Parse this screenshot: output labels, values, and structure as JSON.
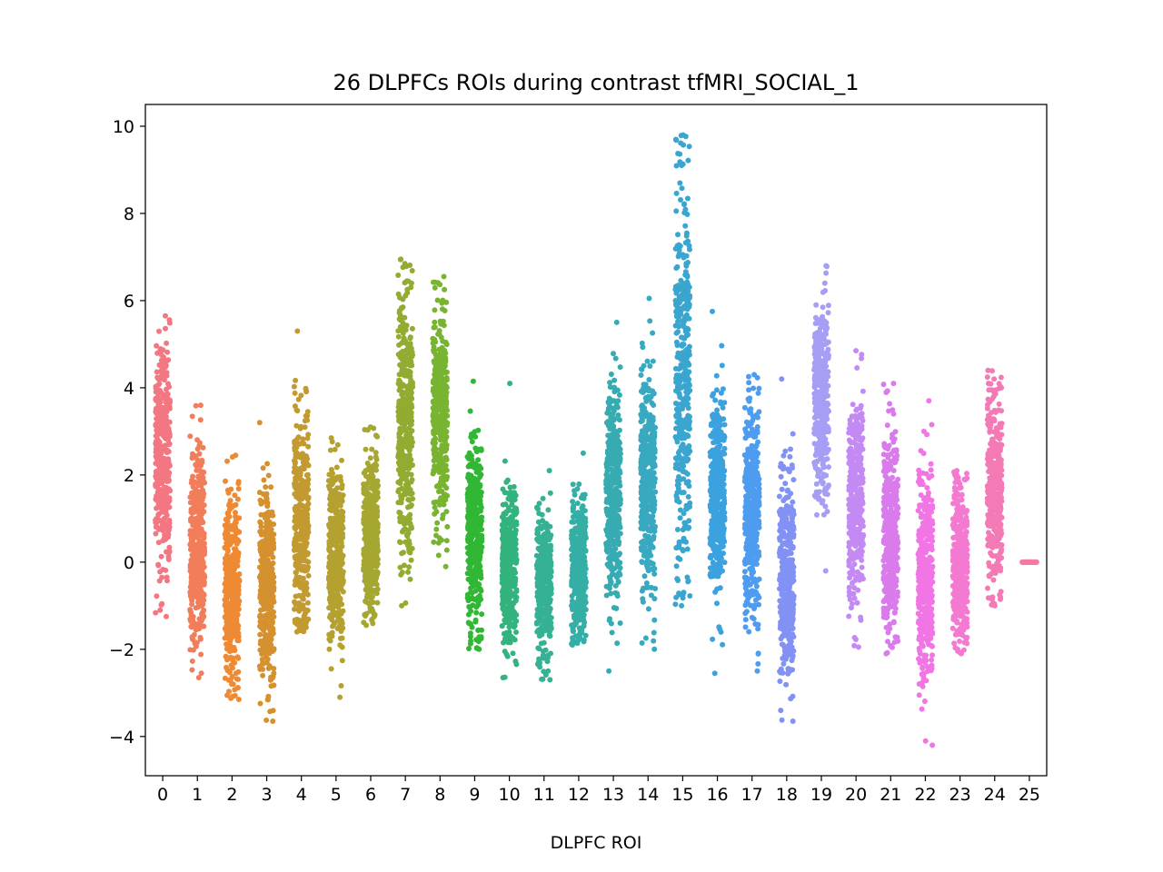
{
  "chart_data": {
    "type": "scatter",
    "subtype": "strip",
    "title": "26 DLPFCs ROIs during contrast tfMRI_SOCIAL_1",
    "xlabel": "DLPFC ROI",
    "ylabel": "",
    "categories": [
      "0",
      "1",
      "2",
      "3",
      "4",
      "5",
      "6",
      "7",
      "8",
      "9",
      "10",
      "11",
      "12",
      "13",
      "14",
      "15",
      "16",
      "17",
      "18",
      "19",
      "20",
      "21",
      "22",
      "23",
      "24",
      "25"
    ],
    "ylim": [
      -4.9,
      10.5
    ],
    "yticks": [
      -4,
      -2,
      0,
      2,
      4,
      6,
      8,
      10
    ],
    "yticklabels": [
      "−4",
      "−2",
      "0",
      "2",
      "4",
      "6",
      "8",
      "10"
    ],
    "grid": false,
    "legend": "none",
    "series_summary": [
      {
        "roi": "0",
        "color": "#f37782",
        "median": 2.5,
        "spread": 1.4,
        "min": -1.25,
        "max": 5.65
      },
      {
        "roi": "1",
        "color": "#f17d5a",
        "median": 0.3,
        "spread": 1.1,
        "min": -2.65,
        "max": 3.6
      },
      {
        "roi": "2",
        "color": "#ef8a34",
        "median": -0.6,
        "spread": 1.0,
        "min": -3.15,
        "max": 2.45
      },
      {
        "roi": "3",
        "color": "#d5912f",
        "median": -0.5,
        "spread": 1.2,
        "min": -3.65,
        "max": 3.2
      },
      {
        "roi": "4",
        "color": "#c29a30",
        "median": 0.9,
        "spread": 1.3,
        "min": -1.6,
        "max": 5.3
      },
      {
        "roi": "5",
        "color": "#b4a130",
        "median": 0.2,
        "spread": 1.0,
        "min": -3.1,
        "max": 2.85
      },
      {
        "roi": "6",
        "color": "#a5a731",
        "median": 0.6,
        "spread": 0.9,
        "min": -1.45,
        "max": 3.1
      },
      {
        "roi": "7",
        "color": "#92ab31",
        "median": 3.2,
        "spread": 1.6,
        "min": -1.0,
        "max": 6.95
      },
      {
        "roi": "8",
        "color": "#78b431",
        "median": 3.5,
        "spread": 1.2,
        "min": -0.1,
        "max": 6.55
      },
      {
        "roi": "9",
        "color": "#31b735",
        "median": 0.6,
        "spread": 1.0,
        "min": -2.0,
        "max": 4.15
      },
      {
        "roi": "10",
        "color": "#33b37e",
        "median": -0.2,
        "spread": 0.9,
        "min": -2.65,
        "max": 4.1
      },
      {
        "roi": "11",
        "color": "#35b194",
        "median": -0.5,
        "spread": 0.8,
        "min": -2.7,
        "max": 2.1
      },
      {
        "roi": "12",
        "color": "#35afa6",
        "median": -0.2,
        "spread": 0.8,
        "min": -1.9,
        "max": 2.5
      },
      {
        "roi": "13",
        "color": "#37abb2",
        "median": 1.6,
        "spread": 1.2,
        "min": -2.5,
        "max": 5.5
      },
      {
        "roi": "14",
        "color": "#38a9c0",
        "median": 2.0,
        "spread": 1.3,
        "min": -2.0,
        "max": 6.05
      },
      {
        "roi": "15",
        "color": "#3aa6cf",
        "median": 4.3,
        "spread": 2.3,
        "min": -1.0,
        "max": 9.8
      },
      {
        "roi": "16",
        "color": "#3ba2df",
        "median": 1.6,
        "spread": 1.2,
        "min": -2.55,
        "max": 5.75
      },
      {
        "roi": "17",
        "color": "#4e9cf0",
        "median": 1.1,
        "spread": 1.2,
        "min": -2.5,
        "max": 4.3
      },
      {
        "roi": "18",
        "color": "#8291f4",
        "median": -0.4,
        "spread": 1.1,
        "min": -3.65,
        "max": 4.2
      },
      {
        "roi": "19",
        "color": "#a59ef4",
        "median": 3.6,
        "spread": 1.1,
        "min": -0.2,
        "max": 6.8
      },
      {
        "roi": "20",
        "color": "#c48af4",
        "median": 1.4,
        "spread": 1.2,
        "min": -1.95,
        "max": 4.85
      },
      {
        "roi": "21",
        "color": "#da7bec",
        "median": 0.6,
        "spread": 1.1,
        "min": -2.1,
        "max": 4.1
      },
      {
        "roi": "22",
        "color": "#f175e5",
        "median": -0.4,
        "spread": 1.2,
        "min": -4.2,
        "max": 3.7
      },
      {
        "roi": "23",
        "color": "#f37ad0",
        "median": 0.0,
        "spread": 0.9,
        "min": -2.1,
        "max": 2.1
      },
      {
        "roi": "24",
        "color": "#f47ab6",
        "median": 1.7,
        "spread": 1.1,
        "min": -1.0,
        "max": 4.4
      },
      {
        "roi": "25",
        "color": "#f47a9f",
        "median": 0.0,
        "spread": 0.0,
        "min": 0.0,
        "max": 0.0
      }
    ]
  }
}
